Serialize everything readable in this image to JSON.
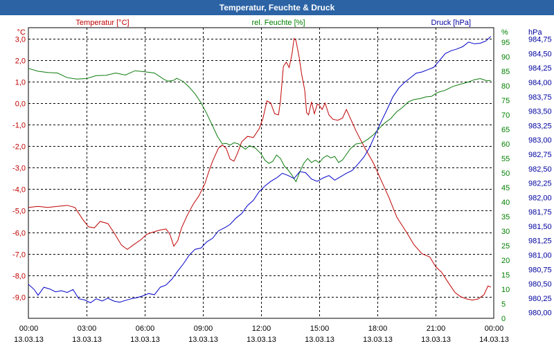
{
  "title": "Temperatur, Feuchte & Druck",
  "chart_data": {
    "type": "line",
    "x_unit": "hours",
    "x_ticks": [
      {
        "t": 0,
        "time": "00:00",
        "date": "13.03.13"
      },
      {
        "t": 3,
        "time": "03:00",
        "date": "13.03.13"
      },
      {
        "t": 6,
        "time": "06:00",
        "date": "13.03.13"
      },
      {
        "t": 9,
        "time": "09:00",
        "date": "13.03.13"
      },
      {
        "t": 12,
        "time": "12:00",
        "date": "13.03.13"
      },
      {
        "t": 15,
        "time": "15:00",
        "date": "13.03.13"
      },
      {
        "t": 18,
        "time": "18:00",
        "date": "13.03.13"
      },
      {
        "t": 21,
        "time": "21:00",
        "date": "13.03.13"
      },
      {
        "t": 24,
        "time": "00:00",
        "date": "14.03.13"
      }
    ],
    "xlim": [
      0,
      24
    ],
    "grid": true,
    "axes": {
      "temp": {
        "unit": "°C",
        "ylim": [
          -10,
          3.5
        ],
        "ticks": [
          "3,0",
          "2,0",
          "1,0",
          "0,0",
          "-1,0",
          "-2,0",
          "-3,0",
          "-4,0",
          "-5,0",
          "-6,0",
          "-7,0",
          "-8,0",
          "-9,0"
        ],
        "tick_values": [
          3,
          2,
          1,
          0,
          -1,
          -2,
          -3,
          -4,
          -5,
          -6,
          -7,
          -8,
          -9
        ]
      },
      "hum": {
        "unit": "%",
        "ylim": [
          0,
          100
        ],
        "ticks": [
          "95",
          "90",
          "85",
          "80",
          "75",
          "70",
          "65",
          "60",
          "55",
          "50",
          "45",
          "40",
          "35",
          "30",
          "25",
          "20",
          "15",
          "10",
          "5",
          "0"
        ],
        "tick_values": [
          95,
          90,
          85,
          80,
          75,
          70,
          65,
          60,
          55,
          50,
          45,
          40,
          35,
          30,
          25,
          20,
          15,
          10,
          5,
          0
        ]
      },
      "press": {
        "unit": "hPa",
        "ylim": [
          979.9,
          984.95
        ],
        "ticks": [
          "984,75",
          "984,50",
          "984,25",
          "984,00",
          "983,75",
          "983,50",
          "983,25",
          "983,00",
          "982,75",
          "982,50",
          "982,25",
          "982,00",
          "981,75",
          "981,50",
          "981,25",
          "981,00",
          "980,75",
          "980,50",
          "980,25",
          "980,00"
        ],
        "tick_values": [
          984.75,
          984.5,
          984.25,
          984,
          983.75,
          983.5,
          983.25,
          983,
          982.75,
          982.5,
          982.25,
          982,
          981.75,
          981.5,
          981.25,
          981,
          980.75,
          980.5,
          980.25,
          980
        ]
      }
    },
    "series": [
      {
        "name": "Temperatur [°C]",
        "axis": "temp",
        "color": "#c00000",
        "label_color": "#c00000",
        "points": [
          [
            0,
            -4.85
          ],
          [
            0.5,
            -4.8
          ],
          [
            1,
            -4.85
          ],
          [
            1.5,
            -4.8
          ],
          [
            2,
            -4.75
          ],
          [
            2.4,
            -4.85
          ],
          [
            2.8,
            -5.4
          ],
          [
            3.1,
            -5.75
          ],
          [
            3.4,
            -5.8
          ],
          [
            3.7,
            -5.5
          ],
          [
            4.1,
            -5.6
          ],
          [
            4.4,
            -6.0
          ],
          [
            4.8,
            -6.6
          ],
          [
            5.1,
            -6.8
          ],
          [
            5.4,
            -6.6
          ],
          [
            5.8,
            -6.35
          ],
          [
            6.1,
            -6.1
          ],
          [
            6.4,
            -6.0
          ],
          [
            6.8,
            -5.9
          ],
          [
            7.1,
            -5.85
          ],
          [
            7.3,
            -6.1
          ],
          [
            7.5,
            -6.65
          ],
          [
            7.7,
            -6.4
          ],
          [
            7.9,
            -5.8
          ],
          [
            8.2,
            -5.2
          ],
          [
            8.5,
            -4.7
          ],
          [
            8.8,
            -4.3
          ],
          [
            9.1,
            -3.75
          ],
          [
            9.3,
            -3.2
          ],
          [
            9.5,
            -2.7
          ],
          [
            9.8,
            -2.1
          ],
          [
            10.0,
            -1.95
          ],
          [
            10.2,
            -2.1
          ],
          [
            10.4,
            -2.6
          ],
          [
            10.6,
            -2.7
          ],
          [
            10.8,
            -2.3
          ],
          [
            11.0,
            -1.8
          ],
          [
            11.3,
            -1.55
          ],
          [
            11.6,
            -1.6
          ],
          [
            11.9,
            -1.2
          ],
          [
            12.1,
            -0.7
          ],
          [
            12.3,
            0.1
          ],
          [
            12.5,
            0.0
          ],
          [
            12.7,
            -0.5
          ],
          [
            12.9,
            -0.55
          ],
          [
            13.0,
            0.1
          ],
          [
            13.15,
            1.7
          ],
          [
            13.3,
            1.9
          ],
          [
            13.45,
            1.65
          ],
          [
            13.6,
            2.3
          ],
          [
            13.7,
            3.0
          ],
          [
            13.8,
            2.9
          ],
          [
            13.95,
            2.2
          ],
          [
            14.1,
            1.3
          ],
          [
            14.25,
            0.6
          ],
          [
            14.35,
            -0.45
          ],
          [
            14.45,
            -0.55
          ],
          [
            14.6,
            0.05
          ],
          [
            14.75,
            -0.5
          ],
          [
            14.9,
            -0.05
          ],
          [
            15.0,
            -0.1
          ],
          [
            15.15,
            -0.3
          ],
          [
            15.3,
            0.0
          ],
          [
            15.5,
            -0.55
          ],
          [
            15.7,
            -0.75
          ],
          [
            15.95,
            -0.8
          ],
          [
            16.2,
            -0.7
          ],
          [
            16.4,
            -0.3
          ],
          [
            16.6,
            -0.7
          ],
          [
            16.9,
            -1.3
          ],
          [
            17.3,
            -2.0
          ],
          [
            17.8,
            -2.8
          ],
          [
            18.2,
            -3.6
          ],
          [
            18.6,
            -4.4
          ],
          [
            19.0,
            -5.3
          ],
          [
            19.5,
            -6.0
          ],
          [
            19.9,
            -6.6
          ],
          [
            20.3,
            -7.0
          ],
          [
            20.7,
            -7.15
          ],
          [
            21.0,
            -7.6
          ],
          [
            21.3,
            -7.85
          ],
          [
            21.7,
            -8.4
          ],
          [
            22.0,
            -8.8
          ],
          [
            22.3,
            -9.0
          ],
          [
            22.6,
            -9.1
          ],
          [
            22.9,
            -9.15
          ],
          [
            23.2,
            -9.1
          ],
          [
            23.5,
            -8.9
          ],
          [
            23.7,
            -8.5
          ],
          [
            23.85,
            -8.55
          ]
        ]
      },
      {
        "name": "rel. Feuchte [%]",
        "axis": "hum",
        "color": "#0a7a0a",
        "label_color": "#008000",
        "points": [
          [
            0,
            86
          ],
          [
            0.5,
            85
          ],
          [
            1,
            84.6
          ],
          [
            1.5,
            84.4
          ],
          [
            2,
            82.8
          ],
          [
            2.5,
            82.3
          ],
          [
            3,
            82.5
          ],
          [
            3.5,
            83.5
          ],
          [
            4,
            83.6
          ],
          [
            4.5,
            84.4
          ],
          [
            5,
            83.7
          ],
          [
            5.5,
            85.2
          ],
          [
            6,
            84.8
          ],
          [
            6.5,
            84.4
          ],
          [
            7.0,
            82.2
          ],
          [
            7.2,
            81.6
          ],
          [
            7.5,
            81.9
          ],
          [
            7.65,
            82.6
          ],
          [
            8.0,
            81.4
          ],
          [
            8.3,
            79.5
          ],
          [
            8.6,
            77.2
          ],
          [
            8.9,
            74.2
          ],
          [
            9.2,
            70.4
          ],
          [
            9.5,
            66.2
          ],
          [
            9.75,
            62.6
          ],
          [
            10.0,
            60.0
          ],
          [
            10.2,
            60.2
          ],
          [
            10.4,
            59.6
          ],
          [
            10.6,
            60.4
          ],
          [
            10.8,
            60.1
          ],
          [
            11.0,
            59.1
          ],
          [
            11.2,
            58.2
          ],
          [
            11.4,
            59.4
          ],
          [
            11.7,
            58.6
          ],
          [
            12.0,
            56.6
          ],
          [
            12.2,
            54.4
          ],
          [
            12.4,
            53.3
          ],
          [
            12.6,
            54.0
          ],
          [
            12.8,
            56.2
          ],
          [
            13.0,
            55.0
          ],
          [
            13.2,
            52.4
          ],
          [
            13.4,
            51.0
          ],
          [
            13.6,
            49.2
          ],
          [
            13.8,
            47.0
          ],
          [
            14.0,
            50.5
          ],
          [
            14.2,
            53.3
          ],
          [
            14.4,
            55.0
          ],
          [
            14.6,
            53.6
          ],
          [
            14.8,
            54.4
          ],
          [
            15.0,
            53.5
          ],
          [
            15.2,
            55.2
          ],
          [
            15.4,
            56.0
          ],
          [
            15.6,
            55.2
          ],
          [
            15.8,
            55.7
          ],
          [
            16.0,
            53.6
          ],
          [
            16.2,
            54.5
          ],
          [
            16.4,
            56.4
          ],
          [
            16.6,
            58.3
          ],
          [
            16.9,
            60.0
          ],
          [
            17.2,
            60.3
          ],
          [
            17.5,
            61.6
          ],
          [
            17.8,
            63.2
          ],
          [
            18.1,
            65.4
          ],
          [
            18.4,
            67.3
          ],
          [
            18.7,
            68.8
          ],
          [
            19.0,
            71.1
          ],
          [
            19.3,
            72.6
          ],
          [
            19.6,
            74.5
          ],
          [
            19.9,
            75.3
          ],
          [
            20.2,
            75.6
          ],
          [
            20.5,
            76.2
          ],
          [
            20.8,
            76.4
          ],
          [
            21.1,
            77.7
          ],
          [
            21.5,
            78.5
          ],
          [
            21.9,
            79.8
          ],
          [
            22.3,
            80.6
          ],
          [
            22.7,
            81.3
          ],
          [
            23.0,
            82.1
          ],
          [
            23.3,
            82.5
          ],
          [
            23.6,
            81.8
          ],
          [
            23.85,
            81.8
          ]
        ]
      },
      {
        "name": "Druck [hPa]",
        "axis": "press",
        "color": "#0000c8",
        "label_color": "#0000a0",
        "points": [
          [
            0,
            980.49
          ],
          [
            0.3,
            980.4
          ],
          [
            0.5,
            980.3
          ],
          [
            0.8,
            980.44
          ],
          [
            1.1,
            980.41
          ],
          [
            1.4,
            980.36
          ],
          [
            1.7,
            980.38
          ],
          [
            2.0,
            980.35
          ],
          [
            2.3,
            980.4
          ],
          [
            2.6,
            980.24
          ],
          [
            2.9,
            980.22
          ],
          [
            3.2,
            980.17
          ],
          [
            3.5,
            980.24
          ],
          [
            3.8,
            980.2
          ],
          [
            4.1,
            980.25
          ],
          [
            4.4,
            980.2
          ],
          [
            4.7,
            980.18
          ],
          [
            5.0,
            980.21
          ],
          [
            5.3,
            980.24
          ],
          [
            5.6,
            980.26
          ],
          [
            5.9,
            980.29
          ],
          [
            6.2,
            980.33
          ],
          [
            6.5,
            980.31
          ],
          [
            6.8,
            980.44
          ],
          [
            7.1,
            980.48
          ],
          [
            7.4,
            980.58
          ],
          [
            7.7,
            980.72
          ],
          [
            8.0,
            980.85
          ],
          [
            8.3,
            981.0
          ],
          [
            8.6,
            981.1
          ],
          [
            8.9,
            981.12
          ],
          [
            9.2,
            981.23
          ],
          [
            9.5,
            981.29
          ],
          [
            9.8,
            981.42
          ],
          [
            10.1,
            981.47
          ],
          [
            10.4,
            981.53
          ],
          [
            10.7,
            981.64
          ],
          [
            11.0,
            981.72
          ],
          [
            11.3,
            981.86
          ],
          [
            11.6,
            981.95
          ],
          [
            11.9,
            982.1
          ],
          [
            12.2,
            982.2
          ],
          [
            12.5,
            982.28
          ],
          [
            12.8,
            982.34
          ],
          [
            13.1,
            982.42
          ],
          [
            13.4,
            982.38
          ],
          [
            13.7,
            982.33
          ],
          [
            14.0,
            982.45
          ],
          [
            14.3,
            982.43
          ],
          [
            14.6,
            982.32
          ],
          [
            14.9,
            982.28
          ],
          [
            15.2,
            982.34
          ],
          [
            15.5,
            982.38
          ],
          [
            15.8,
            982.3
          ],
          [
            16.1,
            982.36
          ],
          [
            16.4,
            982.42
          ],
          [
            16.7,
            982.47
          ],
          [
            17.0,
            982.58
          ],
          [
            17.3,
            982.7
          ],
          [
            17.6,
            982.87
          ],
          [
            17.9,
            983.1
          ],
          [
            18.2,
            983.32
          ],
          [
            18.5,
            983.53
          ],
          [
            18.8,
            983.75
          ],
          [
            19.1,
            983.9
          ],
          [
            19.4,
            984.0
          ],
          [
            19.7,
            984.08
          ],
          [
            20.0,
            984.16
          ],
          [
            20.3,
            984.18
          ],
          [
            20.6,
            984.22
          ],
          [
            20.9,
            984.26
          ],
          [
            21.2,
            984.38
          ],
          [
            21.5,
            984.5
          ],
          [
            21.8,
            984.55
          ],
          [
            22.1,
            984.58
          ],
          [
            22.4,
            984.62
          ],
          [
            22.7,
            984.7
          ],
          [
            23.0,
            984.67
          ],
          [
            23.3,
            984.68
          ],
          [
            23.6,
            984.72
          ],
          [
            23.85,
            984.8
          ]
        ]
      }
    ]
  }
}
